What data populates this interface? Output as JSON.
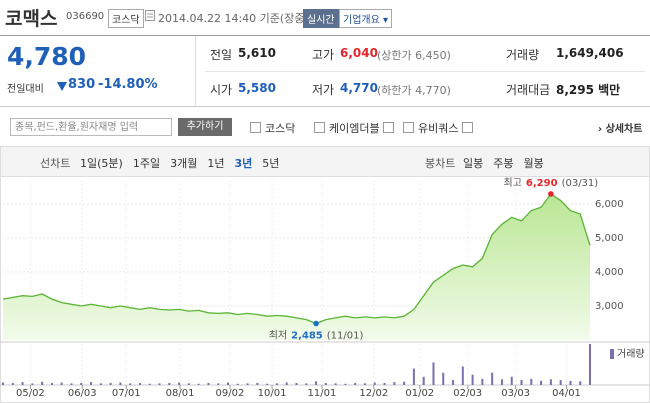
{
  "header": {
    "name": "코맥스",
    "code": "036690",
    "market": "코스닥",
    "timestamp": "2014.04.22 14:40 기준(장중)",
    "realtime": "실시간",
    "company_info": "기업개요"
  },
  "quote": {
    "price": "4,780",
    "change_label": "전일대비",
    "change": "830",
    "change_rate": "-14.80%",
    "stats": [
      {
        "label": "전일",
        "value": "5,610"
      },
      {
        "label": "고가",
        "value": "6,040",
        "note": "(상한가 6,450)"
      },
      {
        "label": "거래량",
        "value": "1,649,406"
      },
      {
        "label": "시가",
        "value": "5,580"
      },
      {
        "label": "저가",
        "value": "4,770",
        "note": "(하한가 4,770)"
      },
      {
        "label": "거래대금",
        "value": "8,295 백만"
      }
    ]
  },
  "search": {
    "placeholder": "종목,펀드,환율,원자재명 입력",
    "button": "추가하기",
    "compare": [
      "코스닥",
      "케이엠더블",
      "유비쿼스"
    ],
    "detail": "상세차트"
  },
  "tabs": {
    "line_label": "선차트",
    "line": [
      "1일(5분)",
      "1주일",
      "3개월",
      "1년",
      "3년",
      "5년"
    ],
    "active": 4,
    "candle_label": "봉차트",
    "candle": [
      "일봉",
      "주봉",
      "월봉"
    ]
  },
  "chart_data": {
    "type": "line",
    "color": "#5ab535",
    "fill": true,
    "grid": true,
    "x": [
      0,
      1,
      2,
      3,
      4,
      5,
      6,
      7,
      8,
      9,
      10,
      11,
      12,
      13,
      14,
      15,
      16,
      17,
      18,
      19,
      20,
      21,
      22,
      23,
      24,
      25,
      26,
      27,
      28,
      29,
      30,
      31,
      32,
      33,
      34,
      35,
      36,
      37,
      38,
      39,
      40,
      41,
      42,
      43,
      44,
      45,
      46,
      47,
      48,
      49,
      50,
      51,
      52,
      53,
      54,
      55,
      56,
      57,
      58,
      59,
      60
    ],
    "values": [
      3200,
      3250,
      3300,
      3280,
      3350,
      3200,
      3100,
      3050,
      3000,
      3050,
      3000,
      2950,
      3000,
      2950,
      2900,
      2950,
      2900,
      2880,
      2900,
      2850,
      2870,
      2800,
      2780,
      2800,
      2750,
      2780,
      2750,
      2700,
      2720,
      2700,
      2650,
      2600,
      2485,
      2600,
      2650,
      2700,
      2650,
      2680,
      2650,
      2680,
      2650,
      2700,
      2900,
      3300,
      3700,
      3900,
      4100,
      4200,
      4150,
      4400,
      5100,
      5400,
      5600,
      5500,
      5800,
      5900,
      6290,
      6100,
      5800,
      5700,
      4780
    ],
    "xlim": [
      0,
      60
    ],
    "xticks": [
      {
        "value": 2.8,
        "label": "05/02"
      },
      {
        "value": 8.1,
        "label": "06/03"
      },
      {
        "value": 12.6,
        "label": "07/01"
      },
      {
        "value": 18.1,
        "label": "08/01"
      },
      {
        "value": 23.2,
        "label": "09/02"
      },
      {
        "value": 27.5,
        "label": "10/01"
      },
      {
        "value": 32.6,
        "label": "11/01"
      },
      {
        "value": 37.9,
        "label": "12/02"
      },
      {
        "value": 42.6,
        "label": "01/02"
      },
      {
        "value": 47.5,
        "label": "02/03"
      },
      {
        "value": 52.4,
        "label": "03/03"
      },
      {
        "value": 57.6,
        "label": "04/01"
      }
    ],
    "ylim": [
      2000,
      6700
    ],
    "yticks": [
      {
        "value": 3000,
        "label": "3,000"
      },
      {
        "value": 4000,
        "label": "4,000"
      },
      {
        "value": 5000,
        "label": "5,000"
      },
      {
        "value": 6000,
        "label": "6,000"
      }
    ],
    "high": {
      "label": "최고",
      "value_label": "6,290",
      "date": "(03/31)",
      "color": "#e3262b"
    },
    "low": {
      "label": "최저",
      "value_label": "2,485",
      "date": "(11/01)",
      "color": "#1f6fc5"
    },
    "volume": {
      "name": "거래량",
      "color": "#7b6fae",
      "ylim": [
        0,
        100
      ],
      "values": [
        6,
        5,
        7,
        4,
        8,
        5,
        6,
        4,
        5,
        7,
        4,
        5,
        6,
        4,
        5,
        3,
        4,
        5,
        6,
        4,
        3,
        5,
        4,
        6,
        3,
        4,
        5,
        3,
        4,
        6,
        5,
        4,
        9,
        5,
        4,
        3,
        5,
        4,
        6,
        5,
        7,
        8,
        40,
        20,
        55,
        30,
        12,
        45,
        25,
        15,
        30,
        14,
        20,
        12,
        15,
        10,
        14,
        12,
        10,
        9,
        100
      ]
    }
  }
}
